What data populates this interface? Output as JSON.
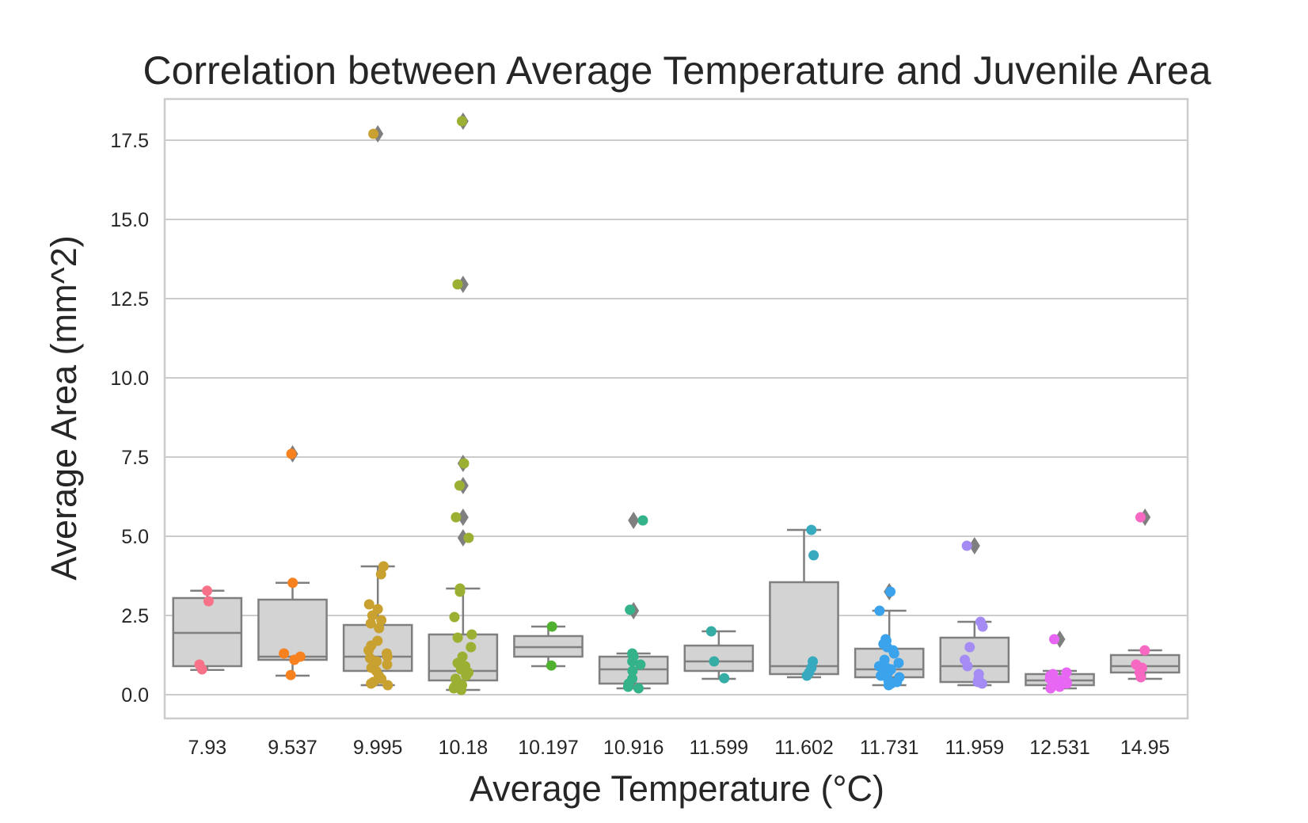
{
  "chart_data": {
    "type": "box",
    "title": "Correlation between Average Temperature and Juvenile Area",
    "xlabel": "Average Temperature (°C)",
    "ylabel": "Average Area (mm^2)",
    "ylim": [
      -0.75,
      18.8
    ],
    "yticks": [
      "0.0",
      "2.5",
      "5.0",
      "7.5",
      "10.0",
      "12.5",
      "15.0",
      "17.5"
    ],
    "grid": true,
    "box_color": "#d3d3d3",
    "box_edge_color": "#7f7f7f",
    "categories": [
      "7.93",
      "9.537",
      "9.995",
      "10.18",
      "10.197",
      "10.916",
      "11.599",
      "11.602",
      "11.731",
      "11.959",
      "12.531",
      "14.95"
    ],
    "series": [
      {
        "category": "7.93",
        "color": "#f77189",
        "q1": 0.9,
        "median": 1.95,
        "q3": 3.05,
        "whisker_low": 0.78,
        "whisker_high": 3.28,
        "outliers": [],
        "points": [
          3.28,
          2.95,
          0.95,
          0.8
        ]
      },
      {
        "category": "9.537",
        "color": "#f7811f",
        "q1": 1.1,
        "median": 1.2,
        "q3": 3.0,
        "whisker_low": 0.6,
        "whisker_high": 3.53,
        "outliers": [
          7.6
        ],
        "points": [
          7.6,
          3.53,
          1.3,
          1.2,
          1.1,
          0.62
        ]
      },
      {
        "category": "9.995",
        "color": "#c8a131",
        "q1": 0.75,
        "median": 1.2,
        "q3": 2.2,
        "whisker_low": 0.3,
        "whisker_high": 4.05,
        "outliers": [
          17.7
        ],
        "points": [
          17.7,
          4.05,
          3.8,
          2.85,
          2.7,
          2.5,
          2.35,
          2.25,
          2.1,
          1.7,
          1.55,
          1.4,
          1.3,
          1.2,
          1.15,
          1.05,
          0.95,
          0.85,
          0.75,
          0.6,
          0.5,
          0.4,
          0.35,
          0.3
        ]
      },
      {
        "category": "10.18",
        "color": "#9bb032",
        "q1": 0.45,
        "median": 0.75,
        "q3": 1.9,
        "whisker_low": 0.15,
        "whisker_high": 3.35,
        "outliers": [
          18.1,
          12.95,
          7.3,
          6.6,
          5.6,
          4.95
        ],
        "points": [
          18.1,
          12.95,
          7.3,
          6.6,
          5.6,
          4.95,
          3.35,
          3.25,
          2.45,
          1.9,
          1.8,
          1.5,
          1.2,
          1.0,
          0.9,
          0.8,
          0.7,
          0.6,
          0.5,
          0.4,
          0.3,
          0.25,
          0.2,
          0.15
        ]
      },
      {
        "category": "10.197",
        "color": "#50b131",
        "q1": 1.2,
        "median": 1.5,
        "q3": 1.85,
        "whisker_low": 0.9,
        "whisker_high": 2.15,
        "outliers": [],
        "points": [
          2.15,
          0.92
        ]
      },
      {
        "category": "10.916",
        "color": "#34b38b",
        "q1": 0.35,
        "median": 0.8,
        "q3": 1.2,
        "whisker_low": 0.2,
        "whisker_high": 1.3,
        "outliers": [
          5.5,
          2.65
        ],
        "points": [
          5.5,
          2.68,
          1.3,
          1.2,
          1.05,
          0.95,
          0.75,
          0.5,
          0.35,
          0.25,
          0.2
        ]
      },
      {
        "category": "11.599",
        "color": "#36ada4",
        "q1": 0.75,
        "median": 1.05,
        "q3": 1.55,
        "whisker_low": 0.5,
        "whisker_high": 2.0,
        "outliers": [],
        "points": [
          2.0,
          1.05,
          0.52
        ]
      },
      {
        "category": "11.602",
        "color": "#38aabf",
        "q1": 0.65,
        "median": 0.9,
        "q3": 3.55,
        "whisker_low": 0.55,
        "whisker_high": 5.2,
        "outliers": [],
        "points": [
          5.2,
          4.4,
          1.05,
          0.85,
          0.7,
          0.6
        ]
      },
      {
        "category": "11.731",
        "color": "#3ba3ec",
        "q1": 0.55,
        "median": 0.8,
        "q3": 1.45,
        "whisker_low": 0.3,
        "whisker_high": 2.65,
        "outliers": [
          3.25
        ],
        "points": [
          3.25,
          2.65,
          1.75,
          1.7,
          1.6,
          1.5,
          1.4,
          1.3,
          1.1,
          1.0,
          0.9,
          0.85,
          0.8,
          0.7,
          0.6,
          0.55,
          0.45,
          0.4,
          0.35,
          0.3
        ]
      },
      {
        "category": "11.959",
        "color": "#a48cf4",
        "q1": 0.4,
        "median": 0.9,
        "q3": 1.8,
        "whisker_low": 0.3,
        "whisker_high": 2.3,
        "outliers": [
          4.7
        ],
        "points": [
          4.7,
          2.3,
          2.15,
          1.5,
          1.1,
          0.9,
          0.65,
          0.5,
          0.4,
          0.35
        ]
      },
      {
        "category": "12.531",
        "color": "#e866f4",
        "q1": 0.3,
        "median": 0.45,
        "q3": 0.65,
        "whisker_low": 0.2,
        "whisker_high": 0.75,
        "outliers": [
          1.75
        ],
        "points": [
          1.75,
          0.7,
          0.65,
          0.6,
          0.55,
          0.5,
          0.45,
          0.4,
          0.35,
          0.3,
          0.25,
          0.2
        ]
      },
      {
        "category": "14.95",
        "color": "#f668c2",
        "q1": 0.7,
        "median": 0.9,
        "q3": 1.25,
        "whisker_low": 0.5,
        "whisker_high": 1.4,
        "outliers": [
          5.6
        ],
        "points": [
          5.6,
          1.4,
          0.95,
          0.85,
          0.7,
          0.55
        ]
      }
    ]
  }
}
